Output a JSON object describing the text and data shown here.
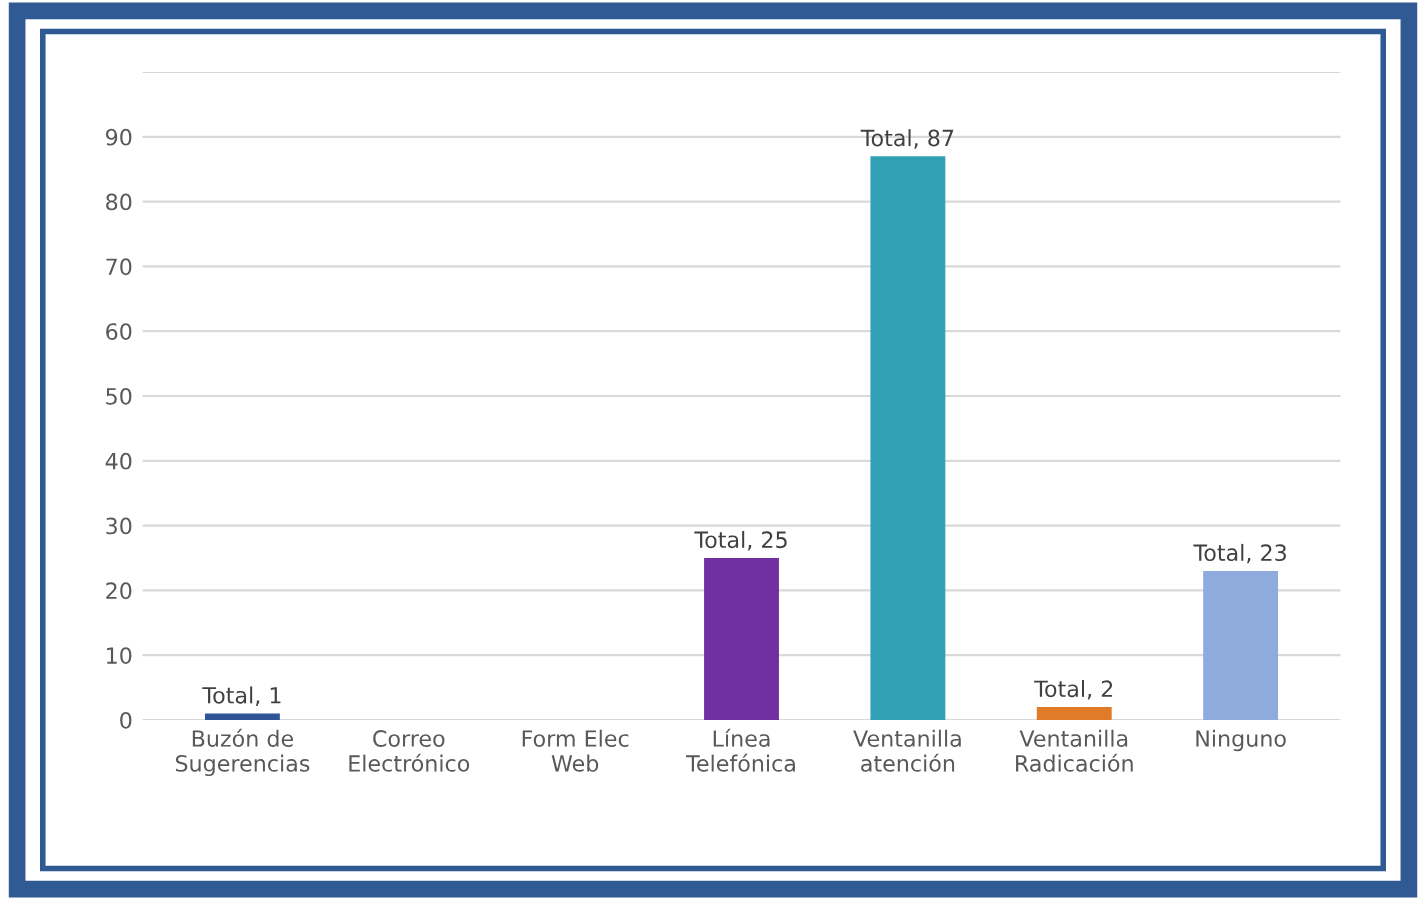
{
  "chart_data": {
    "type": "bar",
    "categories": [
      "Buzón de\nSugerencias",
      "Correo\nElectrónico",
      "Form Elec\nWeb",
      "Línea\nTelefónica",
      "Ventanilla\natención",
      "Ventanilla\nRadicación",
      "Ninguno"
    ],
    "values": [
      1,
      0,
      0,
      25,
      87,
      2,
      23
    ],
    "colors": [
      "#2f5597",
      "#4472c4",
      "#4472c4",
      "#7030a0",
      "#31a0b4",
      "#e07b28",
      "#8faadc"
    ],
    "value_labels": [
      "Total, 1",
      null,
      null,
      "Total, 25",
      "Total, 87",
      "Total, 2",
      "Total, 23"
    ],
    "ylim": [
      0,
      100
    ],
    "yticks": [
      0,
      10,
      20,
      30,
      40,
      50,
      60,
      70,
      80,
      90,
      {
        "value": 100,
        "label": null
      }
    ],
    "grid": "y",
    "legend": false
  }
}
